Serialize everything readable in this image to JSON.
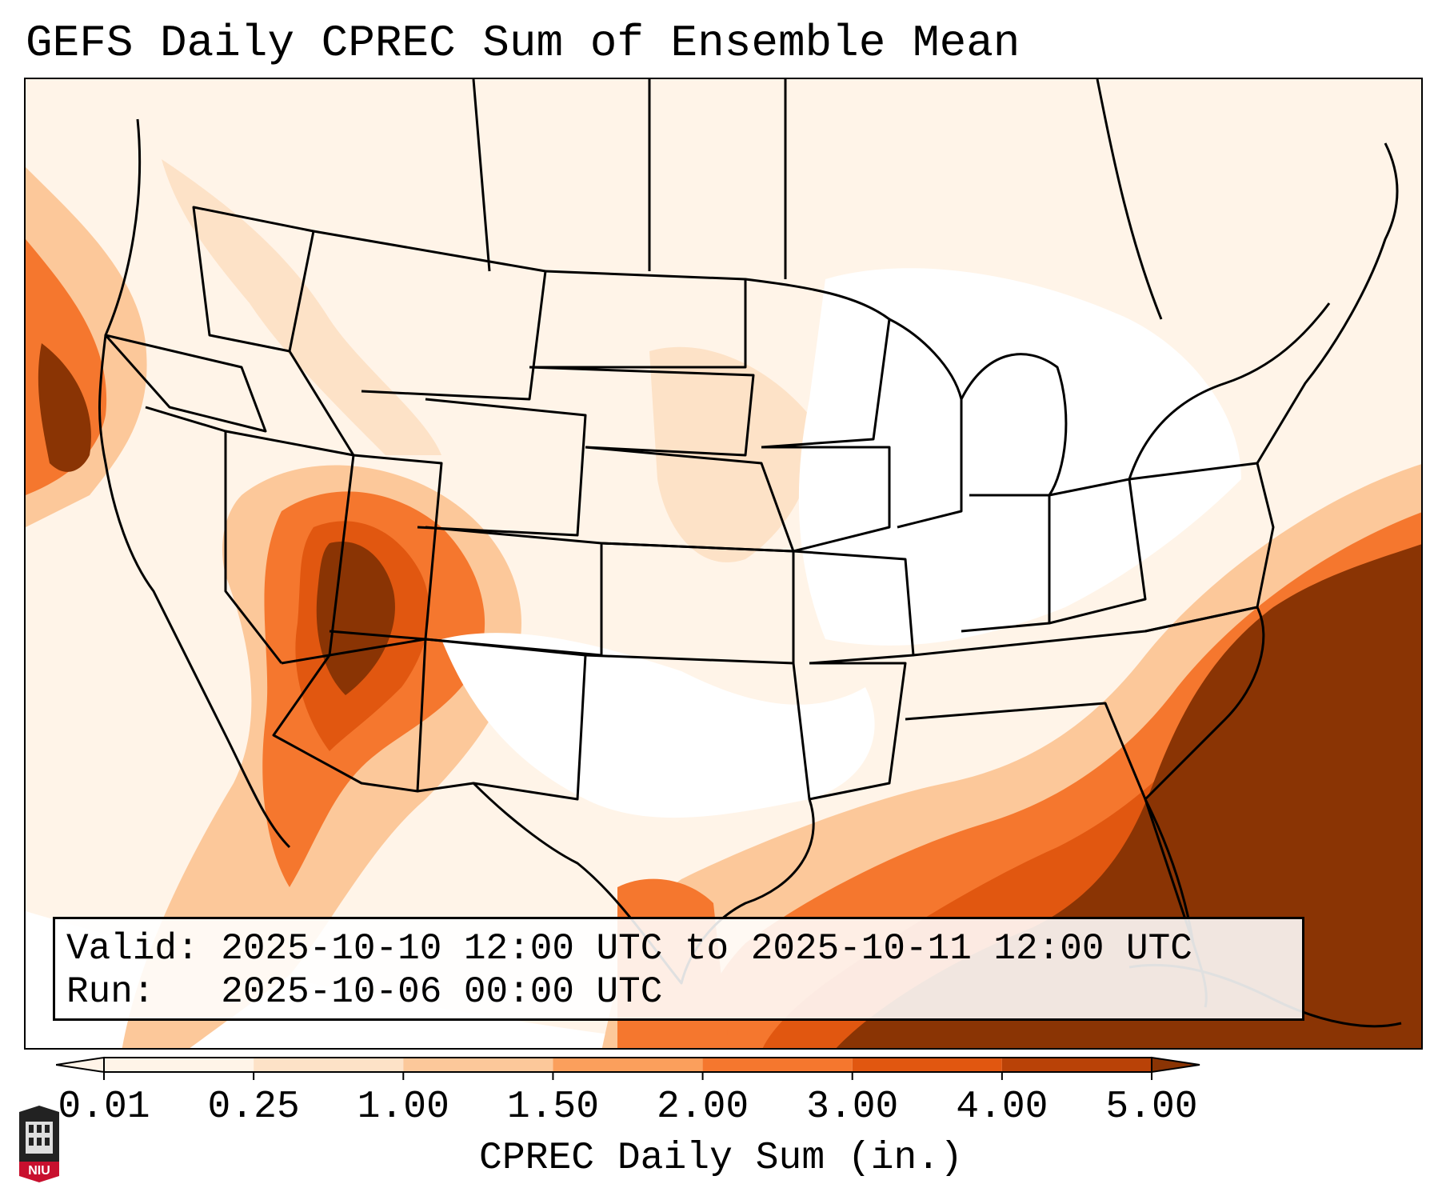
{
  "title": "GEFS Daily CPREC Sum of Ensemble Mean",
  "info": {
    "valid_label": "Valid:",
    "valid_value": "2025-10-10 12:00 UTC to 2025-10-11 12:00 UTC",
    "run_label": "Run:",
    "run_value": "2025-10-06 00:00 UTC"
  },
  "colorbar": {
    "label": "CPREC Daily Sum (in.)",
    "ticks": [
      "0.01",
      "0.25",
      "1.00",
      "1.50",
      "2.00",
      "3.00",
      "4.00",
      "5.00"
    ],
    "colors": [
      "#fff4e8",
      "#fde2c7",
      "#fcc89a",
      "#fb9f5c",
      "#f5772e",
      "#e15710",
      "#b94207",
      "#8a3404"
    ],
    "extend": "both"
  },
  "map": {
    "region": "contiguous-united-states",
    "boundaries": "state-and-coastline",
    "shading_colors": {
      "trace": "#fff4e8",
      "light": "#fde2c7",
      "moderate": "#fcc89a",
      "heavy": "#f5772e",
      "very-heavy": "#e15710",
      "extreme": "#8a3404"
    }
  },
  "logo": {
    "text": "NIU",
    "colors": {
      "seal": "#222222",
      "band": "#c8102e"
    }
  }
}
